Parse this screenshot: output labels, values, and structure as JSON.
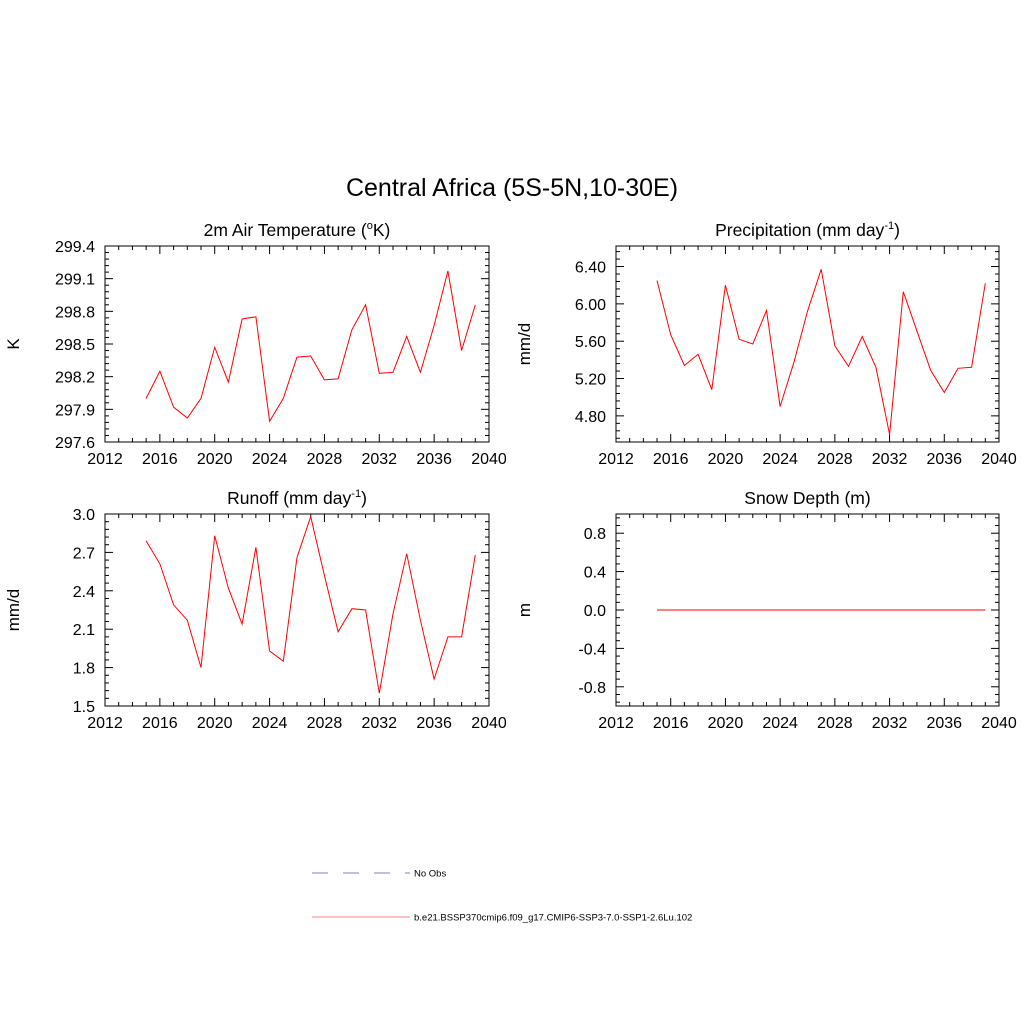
{
  "figure": {
    "title": "Central Africa (5S-5N,10-30E)"
  },
  "colors": {
    "model_line": "#ff0000",
    "legend_model_line": "#ff9a9a",
    "legend_obs_line": "#9a9ad6"
  },
  "legend": {
    "items": [
      {
        "label": "No Obs",
        "style": "dashed"
      },
      {
        "label": "b.e21.BSSP370cmip6.f09_g17.CMIP6-SSP3-7.0-SSP1-2.6Lu.102",
        "style": "solid"
      }
    ]
  },
  "chart_data": [
    {
      "type": "line",
      "title": "2m Air Temperature (",
      "title_sup": "o",
      "title_after": "K)",
      "ylabel": "K",
      "xlim": [
        2012,
        2040
      ],
      "x_ticks": [
        2012,
        2016,
        2020,
        2024,
        2028,
        2032,
        2036,
        2040
      ],
      "x_tick_labels": [
        "2012",
        "2016",
        "2020",
        "2024",
        "2028",
        "2032",
        "2036",
        "2040"
      ],
      "ylim": [
        297.6,
        299.4
      ],
      "y_ticks": [
        297.6,
        297.9,
        298.2,
        298.5,
        298.8,
        299.1,
        299.4
      ],
      "y_tick_labels": [
        "297.6",
        "297.9",
        "298.2",
        "298.5",
        "298.8",
        "299.1",
        "299.4"
      ],
      "grid": false,
      "x": [
        2015,
        2016,
        2017,
        2018,
        2019,
        2020,
        2021,
        2022,
        2023,
        2024,
        2025,
        2026,
        2027,
        2028,
        2029,
        2030,
        2031,
        2032,
        2033,
        2034,
        2035,
        2036,
        2037,
        2038,
        2039
      ],
      "series": [
        {
          "values": [
            298.0,
            298.25,
            297.92,
            297.82,
            298.0,
            298.47,
            298.15,
            298.73,
            298.75,
            297.79,
            298.0,
            298.38,
            298.39,
            298.17,
            298.18,
            298.63,
            298.86,
            298.23,
            298.24,
            298.57,
            298.24,
            298.67,
            299.17,
            298.44,
            298.86
          ]
        }
      ]
    },
    {
      "type": "line",
      "title": "Precipitation (mm day",
      "title_sup": "-1",
      "title_after": ")",
      "ylabel": "mm/d",
      "xlim": [
        2012,
        2040
      ],
      "x_ticks": [
        2012,
        2016,
        2020,
        2024,
        2028,
        2032,
        2036,
        2040
      ],
      "x_tick_labels": [
        "2012",
        "2016",
        "2020",
        "2024",
        "2028",
        "2032",
        "2036",
        "2040"
      ],
      "ylim": [
        4.52,
        6.62
      ],
      "y_ticks": [
        4.8,
        5.2,
        5.6,
        6.0,
        6.4
      ],
      "y_tick_labels": [
        "4.80",
        "5.20",
        "5.60",
        "6.00",
        "6.40"
      ],
      "grid": false,
      "x": [
        2015,
        2016,
        2017,
        2018,
        2019,
        2020,
        2021,
        2022,
        2023,
        2024,
        2025,
        2026,
        2027,
        2028,
        2029,
        2030,
        2031,
        2032,
        2033,
        2034,
        2035,
        2036,
        2037,
        2038,
        2039
      ],
      "series": [
        {
          "values": [
            6.25,
            5.67,
            5.34,
            5.46,
            5.08,
            6.2,
            5.62,
            5.57,
            5.93,
            4.9,
            5.37,
            5.92,
            6.37,
            5.55,
            5.33,
            5.65,
            5.32,
            4.6,
            6.13,
            5.71,
            5.29,
            5.05,
            5.31,
            5.32,
            6.22
          ]
        }
      ]
    },
    {
      "type": "line",
      "title": "Runoff (mm day",
      "title_sup": "-1",
      "title_after": ")",
      "ylabel": "mm/d",
      "xlim": [
        2012,
        2040
      ],
      "x_ticks": [
        2012,
        2016,
        2020,
        2024,
        2028,
        2032,
        2036,
        2040
      ],
      "x_tick_labels": [
        "2012",
        "2016",
        "2020",
        "2024",
        "2028",
        "2032",
        "2036",
        "2040"
      ],
      "ylim": [
        1.5,
        3.0
      ],
      "y_ticks": [
        1.5,
        1.8,
        2.1,
        2.4,
        2.7,
        3.0
      ],
      "y_tick_labels": [
        "1.5",
        "1.8",
        "2.1",
        "2.4",
        "2.7",
        "3.0"
      ],
      "grid": false,
      "x": [
        2015,
        2016,
        2017,
        2018,
        2019,
        2020,
        2021,
        2022,
        2023,
        2024,
        2025,
        2026,
        2027,
        2028,
        2029,
        2030,
        2031,
        2032,
        2033,
        2034,
        2035,
        2036,
        2037,
        2038,
        2039
      ],
      "series": [
        {
          "values": [
            2.79,
            2.61,
            2.29,
            2.17,
            1.8,
            2.83,
            2.42,
            2.14,
            2.74,
            1.93,
            1.85,
            2.66,
            2.98,
            2.52,
            2.08,
            2.26,
            2.25,
            1.6,
            2.22,
            2.69,
            2.17,
            1.71,
            2.04,
            2.04,
            2.68
          ]
        }
      ]
    },
    {
      "type": "line",
      "title": "Snow Depth (m)",
      "title_sup": "",
      "title_after": "",
      "ylabel": "m",
      "xlim": [
        2012,
        2040
      ],
      "x_ticks": [
        2012,
        2016,
        2020,
        2024,
        2028,
        2032,
        2036,
        2040
      ],
      "x_tick_labels": [
        "2012",
        "2016",
        "2020",
        "2024",
        "2028",
        "2032",
        "2036",
        "2040"
      ],
      "ylim": [
        -1.0,
        1.0
      ],
      "y_ticks": [
        -0.8,
        -0.4,
        0.0,
        0.4,
        0.8
      ],
      "y_tick_labels": [
        "-0.8",
        "-0.4",
        "0.0",
        "0.4",
        "0.8"
      ],
      "grid": false,
      "x": [
        2015,
        2016,
        2017,
        2018,
        2019,
        2020,
        2021,
        2022,
        2023,
        2024,
        2025,
        2026,
        2027,
        2028,
        2029,
        2030,
        2031,
        2032,
        2033,
        2034,
        2035,
        2036,
        2037,
        2038,
        2039
      ],
      "series": [
        {
          "values": [
            0,
            0,
            0,
            0,
            0,
            0,
            0,
            0,
            0,
            0,
            0,
            0,
            0,
            0,
            0,
            0,
            0,
            0,
            0,
            0,
            0,
            0,
            0,
            0,
            0
          ]
        }
      ]
    }
  ]
}
